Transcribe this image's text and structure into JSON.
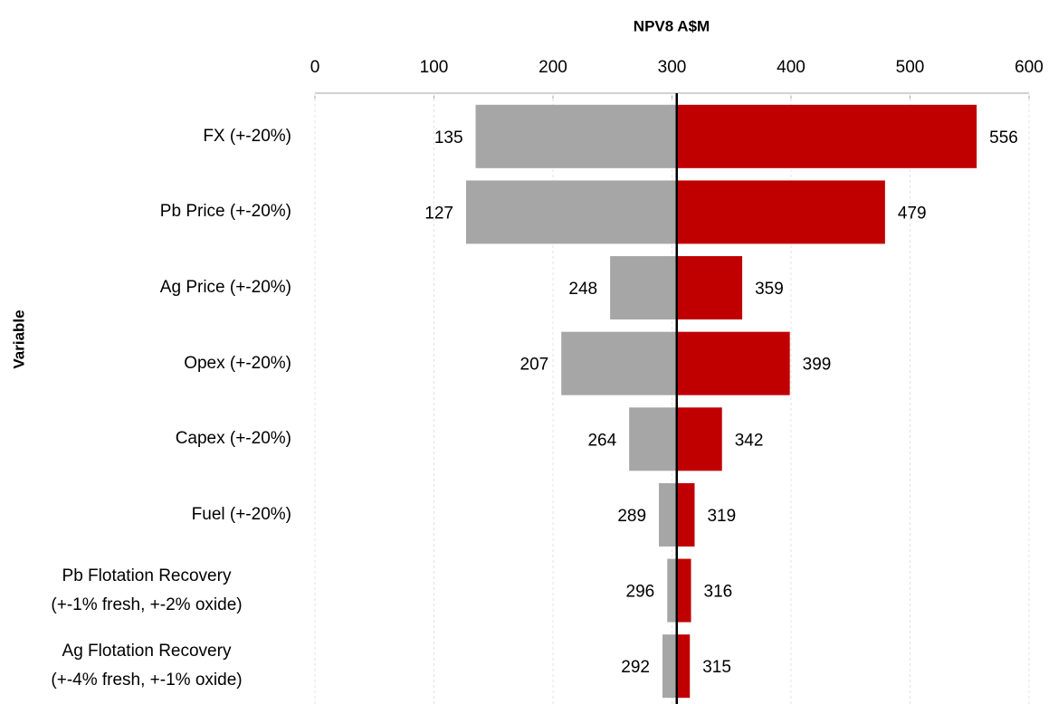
{
  "chart_data": {
    "type": "tornado",
    "title": "NPV8 A$M",
    "y_label": "Variable",
    "categories": [
      "FX (+-20%)",
      "Pb Price (+-20%)",
      "Ag Price (+-20%)",
      "Opex (+-20%)",
      "Capex (+-20%)",
      "Fuel (+-20%)",
      "Pb Flotation Recovery\n(+-1% fresh, +-2% oxide)",
      "Ag Flotation Recovery\n(+-4% fresh, +-1% oxide)"
    ],
    "base": 304,
    "series": [
      {
        "color": "#a6a6a6",
        "values": [
          135,
          127,
          248,
          207,
          264,
          289,
          296,
          292
        ]
      },
      {
        "color": "#c00000",
        "values": [
          556,
          479,
          359,
          399,
          342,
          319,
          316,
          315
        ]
      }
    ],
    "xlim": [
      0,
      600
    ],
    "xticks": [
      0,
      100,
      200,
      300,
      400,
      500,
      600
    ],
    "grid": true
  }
}
